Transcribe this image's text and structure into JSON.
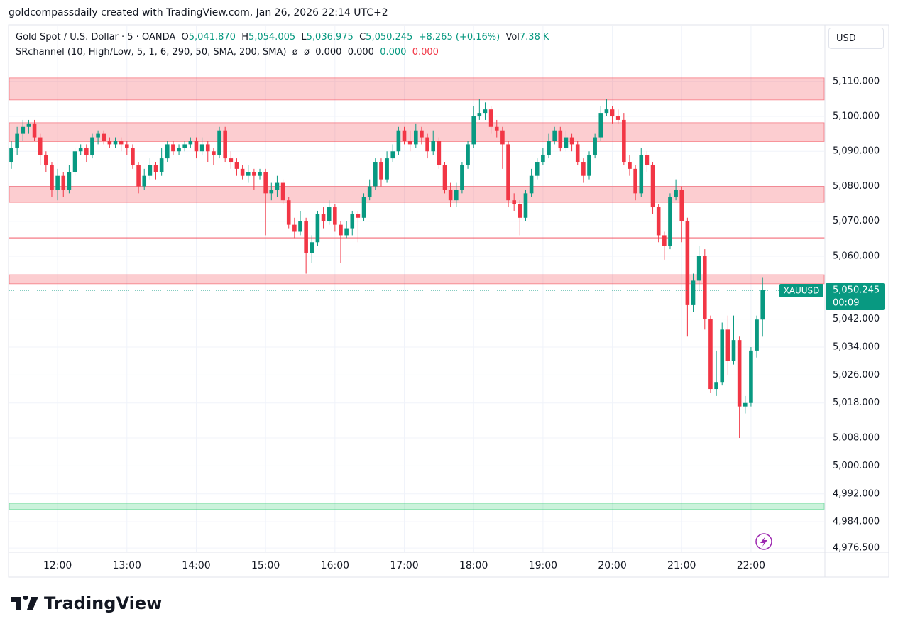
{
  "header": {
    "attribution": "goldcompassdaily created with TradingView.com, Jan 26, 2026 22:14 UTC+2",
    "symbol": "Gold Spot / U.S. Dollar · 5 · OANDA",
    "ohlc": [
      {
        "key": "O",
        "value": "5,041.870"
      },
      {
        "key": "H",
        "value": "5,054.005"
      },
      {
        "key": "L",
        "value": "5,036.975"
      },
      {
        "key": "C",
        "value": "5,050.245"
      }
    ],
    "change": "+8.265 (+0.16%)",
    "vol_key": "Vol",
    "vol": "7.38 K",
    "indicator": "SRchannel (10, High/Low, 5, 1, 6, 290, 50, SMA, 200, SMA)",
    "indicator_values": [
      "ø",
      "ø",
      "0.000",
      "0.000",
      "0.000",
      "0.000"
    ]
  },
  "currency": "USD",
  "price_tag": {
    "symbol": "XAUUSD",
    "price": "5,050.245",
    "countdown": "00:09"
  },
  "logo": "TradingView",
  "chart_data": {
    "type": "candlestick",
    "categories": [
      null,
      null,
      null,
      null,
      null,
      null,
      null,
      null,
      "12:00",
      null,
      null,
      null,
      null,
      null,
      null,
      null,
      null,
      null,
      null,
      null,
      "13:00",
      null,
      null,
      null,
      null,
      null,
      null,
      null,
      null,
      null,
      null,
      null,
      "14:00",
      null,
      null,
      null,
      null,
      null,
      null,
      null,
      null,
      null,
      null,
      null,
      "15:00",
      null,
      null,
      null,
      null,
      null,
      null,
      null,
      null,
      null,
      null,
      null,
      "16:00",
      null,
      null,
      null,
      null,
      null,
      null,
      null,
      null,
      null,
      null,
      null,
      "17:00",
      null,
      null,
      null,
      null,
      null,
      null,
      null,
      null,
      null,
      null,
      null,
      "18:00",
      null,
      null,
      null,
      null,
      null,
      null,
      null,
      null,
      null,
      null,
      null,
      "19:00",
      null,
      null,
      null,
      null,
      null,
      null,
      null,
      null,
      null,
      null,
      null,
      "20:00",
      null,
      null,
      null,
      null,
      null,
      null,
      null,
      null,
      null,
      null,
      null,
      "21:00",
      null,
      null,
      null,
      null,
      null,
      null,
      null,
      null,
      null,
      null,
      null,
      "22:00",
      null,
      null
    ],
    "open": [
      5087,
      5091,
      5095,
      5097,
      5098,
      5094,
      5089,
      5086,
      5079,
      5083,
      5079,
      5084,
      5090,
      5091,
      5089,
      5094,
      5095,
      5093,
      5092,
      5093,
      5092,
      5091,
      5086,
      5080,
      5083,
      5086,
      5084,
      5088,
      5092,
      5090,
      5091,
      5092,
      5093,
      5090,
      5092,
      5090,
      5089,
      5096,
      5088,
      5087,
      5085,
      5083,
      5084,
      5083,
      5084,
      5078,
      5079,
      5081,
      5076,
      5069,
      5067,
      5070,
      5061,
      5064,
      5072,
      5070,
      5074,
      5069,
      5066,
      5068,
      5072,
      5071,
      5077,
      5080,
      5087,
      5082,
      5088,
      5090,
      5096,
      5093,
      5092,
      5096,
      5094,
      5090,
      5093,
      5086,
      5079,
      5076,
      5079,
      5086,
      5092,
      5100,
      5101,
      5102,
      5097,
      5096,
      5092,
      5076,
      5075,
      5071,
      5078,
      5083,
      5087,
      5089,
      5093,
      5096,
      5091,
      5094,
      5092,
      5087,
      5083,
      5089,
      5094,
      5101,
      5102,
      5100,
      5099,
      5087,
      5085,
      5078,
      5089,
      5086,
      5074,
      5066,
      5063,
      5077,
      5079,
      5070,
      5046,
      5053,
      5060,
      5042,
      5022,
      5024,
      5039,
      5030,
      5036,
      5017,
      5018,
      5033,
      5041.87
    ],
    "high": [
      5093,
      5097,
      5099,
      5099,
      5099,
      5095,
      5090,
      5087,
      5085,
      5084,
      5086,
      5091,
      5092,
      5092,
      5095,
      5096,
      5096,
      5094,
      5094,
      5094,
      5093,
      5092,
      5087,
      5085,
      5088,
      5087,
      5091,
      5093,
      5093,
      5092,
      5093,
      5094,
      5094,
      5094,
      5093,
      5091,
      5097,
      5097,
      5090,
      5088,
      5086,
      5086,
      5085,
      5085,
      5085,
      5081,
      5083,
      5082,
      5077,
      5071,
      5073,
      5071,
      5066,
      5073,
      5074,
      5076,
      5075,
      5070,
      5070,
      5073,
      5073,
      5078,
      5082,
      5088,
      5088,
      5090,
      5092,
      5097,
      5097,
      5096,
      5098,
      5097,
      5095,
      5096,
      5094,
      5087,
      5081,
      5081,
      5087,
      5093,
      5103,
      5105,
      5104,
      5103,
      5099,
      5097,
      5093,
      5078,
      5076,
      5079,
      5085,
      5088,
      5091,
      5095,
      5097,
      5097,
      5096,
      5095,
      5093,
      5088,
      5090,
      5095,
      5103,
      5105,
      5103,
      5102,
      5101,
      5089,
      5086,
      5091,
      5090,
      5087,
      5075,
      5067,
      5078,
      5082,
      5080,
      5071,
      5055,
      5063,
      5062,
      5043,
      5033,
      5041,
      5043,
      5043,
      5037,
      5020,
      5034,
      5043,
      5054.005
    ],
    "low": [
      5085,
      5089,
      5093,
      5095,
      5093,
      5086,
      5084,
      5077,
      5076,
      5077,
      5078,
      5083,
      5089,
      5087,
      5088,
      5092,
      5092,
      5091,
      5091,
      5090,
      5089,
      5085,
      5078,
      5079,
      5082,
      5082,
      5083,
      5087,
      5089,
      5089,
      5090,
      5091,
      5088,
      5089,
      5087,
      5086,
      5088,
      5087,
      5085,
      5083,
      5082,
      5081,
      5079,
      5082,
      5066,
      5076,
      5077,
      5075,
      5068,
      5065,
      5066,
      5055,
      5058,
      5063,
      5068,
      5069,
      5067,
      5058,
      5065,
      5066,
      5064,
      5070,
      5076,
      5079,
      5080,
      5081,
      5087,
      5089,
      5092,
      5090,
      5091,
      5092,
      5088,
      5089,
      5085,
      5078,
      5074,
      5074,
      5078,
      5085,
      5091,
      5099,
      5099,
      5095,
      5094,
      5085,
      5074,
      5073,
      5066,
      5070,
      5077,
      5082,
      5086,
      5088,
      5092,
      5090,
      5090,
      5090,
      5086,
      5081,
      5082,
      5088,
      5093,
      5100,
      5098,
      5098,
      5086,
      5083,
      5076,
      5077,
      5084,
      5072,
      5064,
      5059,
      5062,
      5076,
      5064,
      5037,
      5044,
      5050,
      5039,
      5021,
      5020,
      5023,
      5026,
      5029,
      5008,
      5015,
      5017,
      5031,
      5036.975
    ],
    "close": [
      5091,
      5095,
      5097,
      5098,
      5094,
      5089,
      5086,
      5079,
      5083,
      5079,
      5084,
      5090,
      5091,
      5089,
      5094,
      5095,
      5093,
      5092,
      5093,
      5092,
      5091,
      5086,
      5080,
      5083,
      5086,
      5084,
      5088,
      5092,
      5090,
      5091,
      5092,
      5093,
      5090,
      5092,
      5090,
      5089,
      5096,
      5088,
      5087,
      5085,
      5083,
      5084,
      5083,
      5084,
      5078,
      5079,
      5081,
      5076,
      5069,
      5067,
      5070,
      5061,
      5064,
      5072,
      5070,
      5074,
      5069,
      5066,
      5068,
      5072,
      5071,
      5077,
      5080,
      5087,
      5082,
      5088,
      5090,
      5096,
      5093,
      5092,
      5096,
      5094,
      5090,
      5093,
      5086,
      5079,
      5076,
      5079,
      5086,
      5092,
      5100,
      5101,
      5102,
      5097,
      5096,
      5092,
      5076,
      5075,
      5071,
      5078,
      5083,
      5087,
      5089,
      5093,
      5096,
      5091,
      5094,
      5092,
      5087,
      5083,
      5089,
      5094,
      5101,
      5102,
      5100,
      5099,
      5087,
      5085,
      5078,
      5089,
      5086,
      5074,
      5066,
      5063,
      5077,
      5079,
      5070,
      5046,
      5053,
      5060,
      5042,
      5022,
      5024,
      5039,
      5030,
      5036,
      5017,
      5018,
      5033,
      5041.87,
      5050.245
    ],
    "up_color": "#089981",
    "down_color": "#f23645",
    "ylim": [
      4975.5,
      5126
    ],
    "yticks": [
      {
        "value": 5110,
        "label": "5,110.000"
      },
      {
        "value": 5100,
        "label": "5,100.000"
      },
      {
        "value": 5090,
        "label": "5,090.000"
      },
      {
        "value": 5080,
        "label": "5,080.000"
      },
      {
        "value": 5070,
        "label": "5,070.000"
      },
      {
        "value": 5060,
        "label": "5,060.000"
      },
      {
        "value": 5042,
        "label": "5,042.000"
      },
      {
        "value": 5034,
        "label": "5,034.000"
      },
      {
        "value": 5026,
        "label": "5,026.000"
      },
      {
        "value": 5018,
        "label": "5,018.000"
      },
      {
        "value": 5008,
        "label": "5,008.000"
      },
      {
        "value": 5000,
        "label": "5,000.000"
      },
      {
        "value": 4992,
        "label": "4,992.000"
      },
      {
        "value": 4984,
        "label": "4,984.000"
      },
      {
        "value": 4976.5,
        "label": "4,976.500"
      }
    ],
    "grid": true,
    "zones": [
      {
        "low": 5104.7,
        "high": 5111,
        "color": "#f23645"
      },
      {
        "low": 5092.8,
        "high": 5098.2,
        "color": "#f23645"
      },
      {
        "low": 5075.4,
        "high": 5080,
        "color": "#f23645"
      },
      {
        "low": 5065,
        "high": 5065.3,
        "color": "#f23645"
      },
      {
        "low": 5052.1,
        "high": 5054.7,
        "color": "#f23645"
      },
      {
        "low": 4987.6,
        "high": 4989.3,
        "color": "#2ecc71"
      }
    ]
  }
}
